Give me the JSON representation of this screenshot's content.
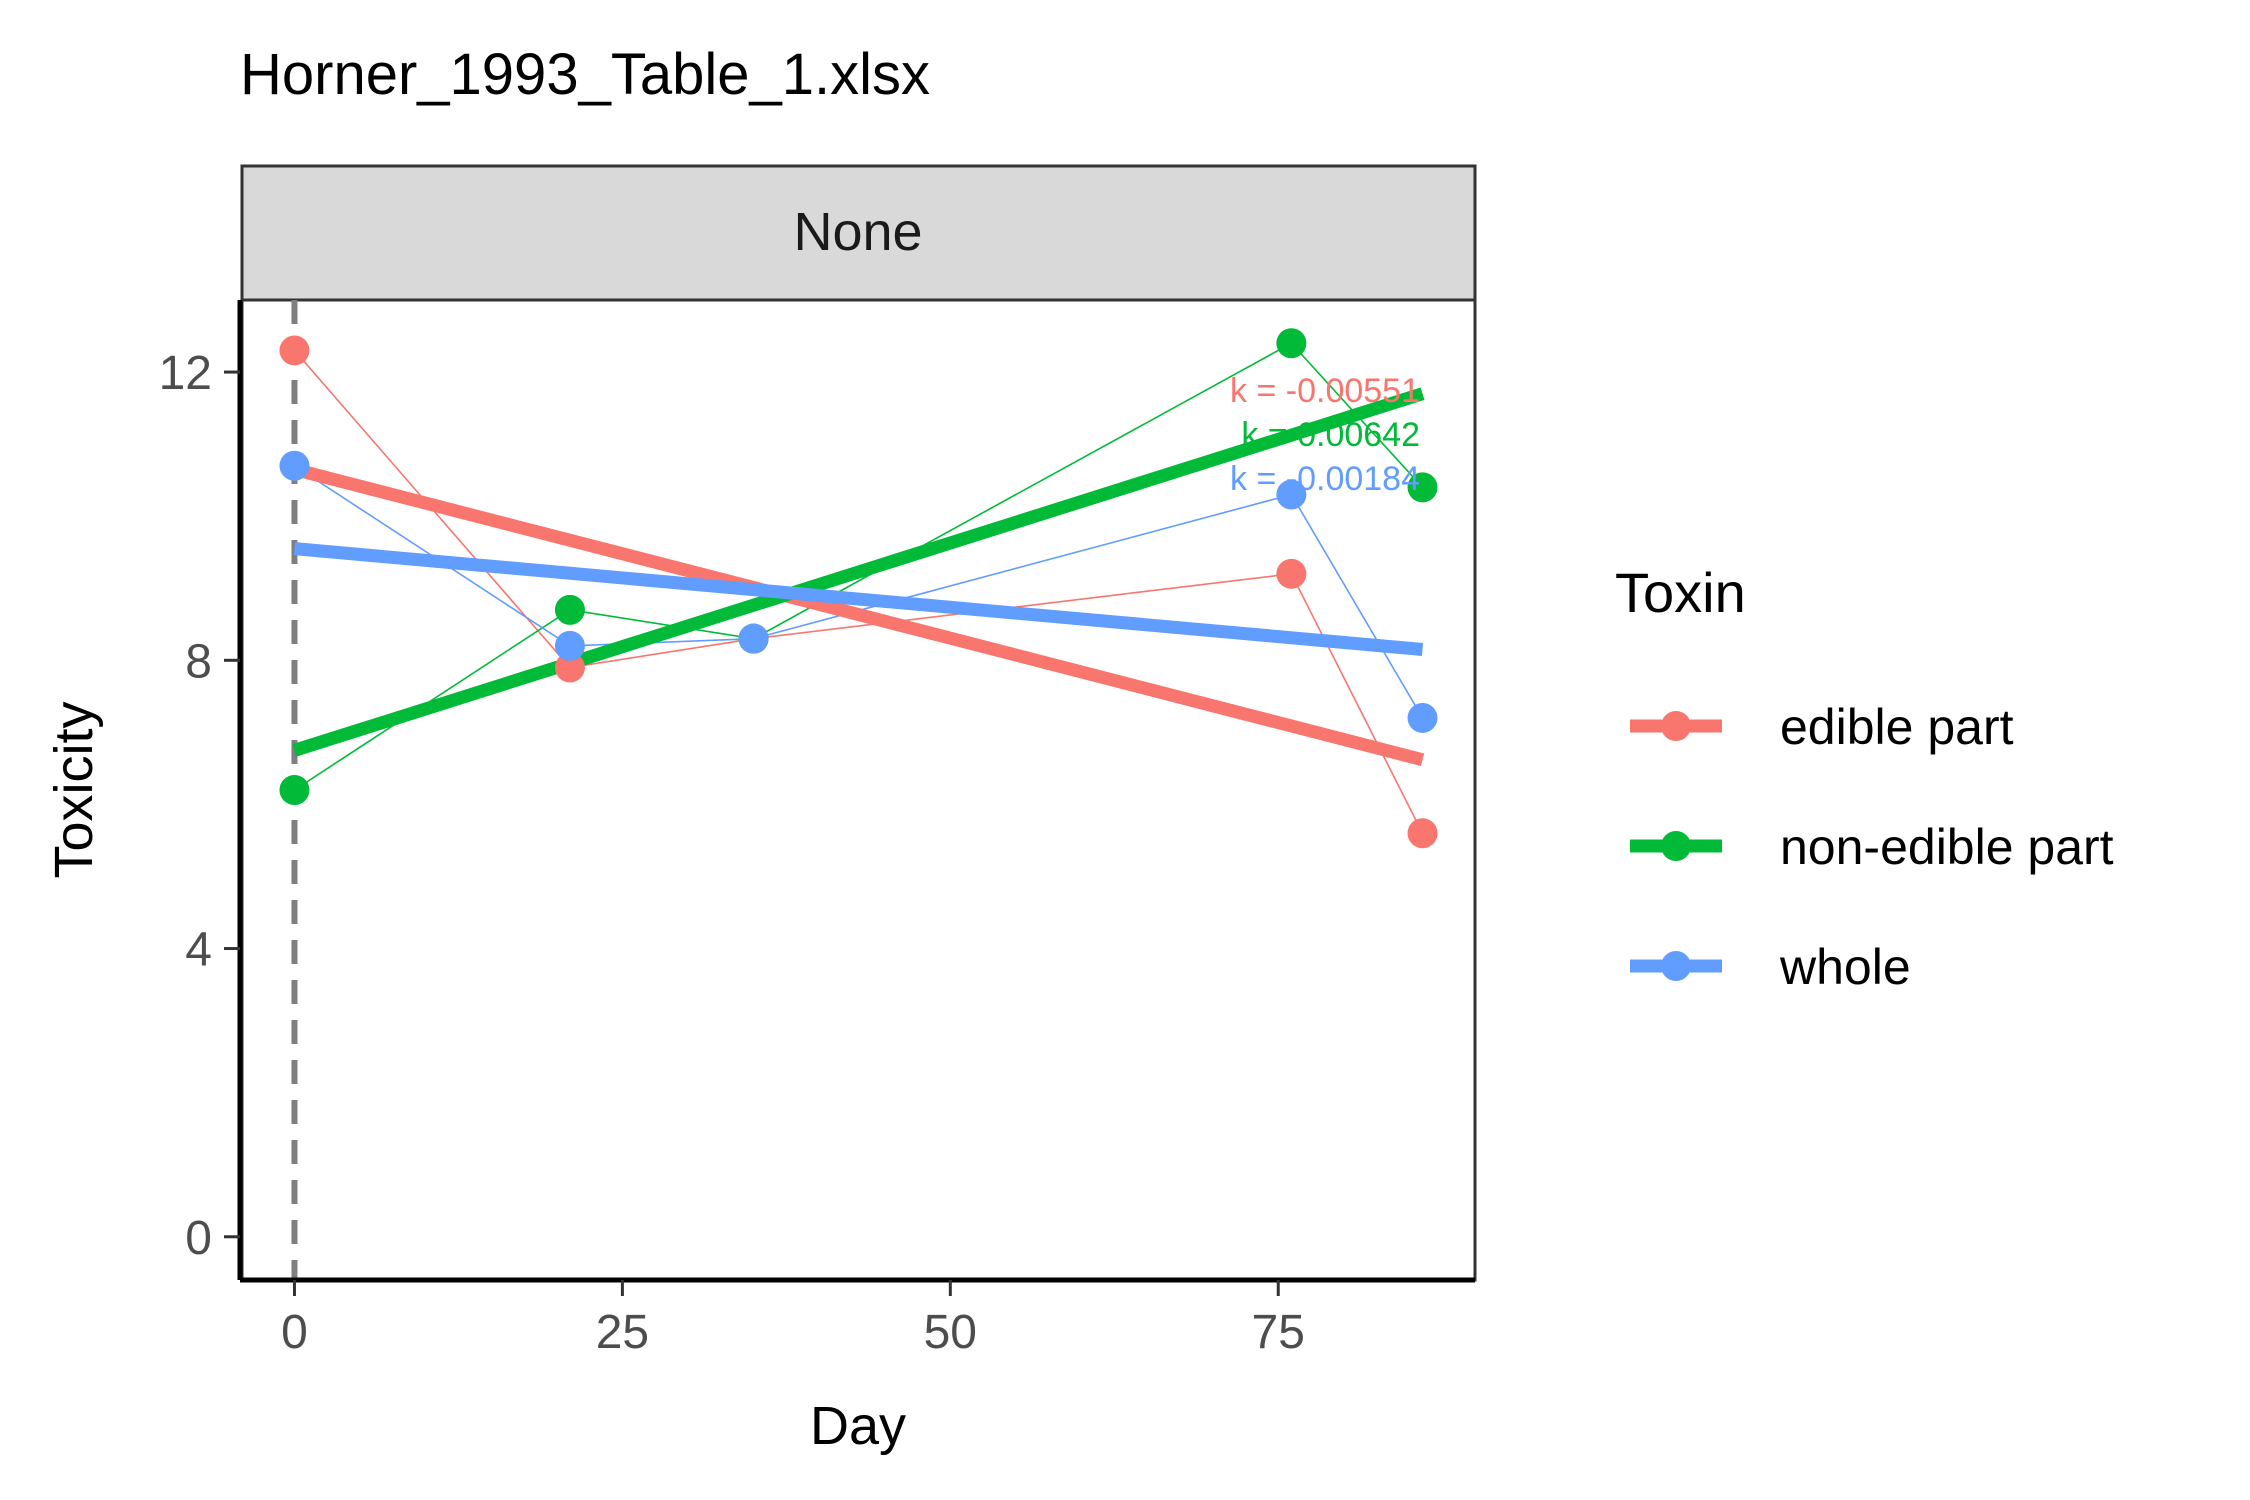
{
  "chart_data": {
    "type": "line",
    "title": "Horner_1993_Table_1.xlsx",
    "facet": "None",
    "xlabel": "Day",
    "ylabel": "Toxicity",
    "xlim": [
      -4,
      90
    ],
    "ylim": [
      -0.6,
      13
    ],
    "x_ticks": [
      0,
      25,
      50,
      75
    ],
    "y_ticks": [
      0,
      4,
      8,
      12
    ],
    "vline_x": 0,
    "grid": false,
    "legend_title": "Toxin",
    "legend_position": "right",
    "series": [
      {
        "name": "edible part",
        "color": "#F8766D",
        "points": [
          [
            0,
            12.3
          ],
          [
            21,
            7.9
          ],
          [
            35,
            8.3
          ],
          [
            76,
            9.2
          ],
          [
            86,
            5.6
          ]
        ],
        "fit": [
          [
            0,
            10.65
          ],
          [
            86,
            6.62
          ]
        ],
        "k_label": "k = -0.00551"
      },
      {
        "name": "non-edible part",
        "color": "#00BA38",
        "points": [
          [
            0,
            6.2
          ],
          [
            21,
            8.7
          ],
          [
            35,
            8.3
          ],
          [
            76,
            12.4
          ],
          [
            86,
            10.4
          ]
        ],
        "fit": [
          [
            0,
            6.75
          ],
          [
            86,
            11.7
          ]
        ],
        "k_label": "k = 0.00642"
      },
      {
        "name": "whole",
        "color": "#619CFF",
        "points": [
          [
            0,
            10.7
          ],
          [
            21,
            8.2
          ],
          [
            35,
            8.3
          ],
          [
            76,
            10.3
          ],
          [
            86,
            7.2
          ]
        ],
        "fit": [
          [
            0,
            9.55
          ],
          [
            86,
            8.15
          ]
        ],
        "k_label": "k = -0.00184"
      }
    ]
  }
}
